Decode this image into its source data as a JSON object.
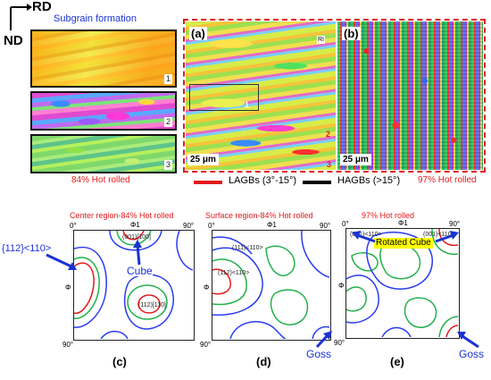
{
  "axes": {
    "rd": "RD",
    "nd": "ND"
  },
  "top": {
    "subgrain_title": "Subgrain formation",
    "strip_numbers": [
      "1",
      "2",
      "3"
    ],
    "label_84": "84% Hot rolled",
    "panel_a": {
      "letter": "(a)",
      "scale": "25 μm",
      "markers": [
        "1",
        "2",
        "3"
      ],
      "rd_tag": "RI"
    },
    "panel_b": {
      "letter": "(b)",
      "scale": "25 μm"
    },
    "legend": {
      "lagb": "LAGBs (3°-15°)",
      "hagb": "HAGBs (>15°)",
      "lagb_color": "#e31a1c",
      "hagb_color": "#000000"
    },
    "label_97": "97% Hot rolled"
  },
  "odf": {
    "titles": [
      "Center region-84% Hot rolled",
      "Surface region-84% Hot rolled",
      "97% Hot rolled"
    ],
    "tick_0": "0°",
    "tick_90": "90°",
    "phi1": "Φ1",
    "phi": "Φ",
    "callout_112": "{112}<110>",
    "callout_cube": "Cube",
    "callout_goss_d": "Goss",
    "callout_rotated_cube": "Rotated Cube",
    "callout_goss_e": "Goss",
    "panel_letters": [
      "(c)",
      "(d)",
      "(e)"
    ],
    "small_labels_c": [
      "(001)[100]",
      "(112)[110]"
    ],
    "small_labels_d": [
      "(111)<110>",
      "(112)<110>"
    ],
    "small_labels_e": [
      "(001)<110>",
      "(001)<110>"
    ]
  }
}
